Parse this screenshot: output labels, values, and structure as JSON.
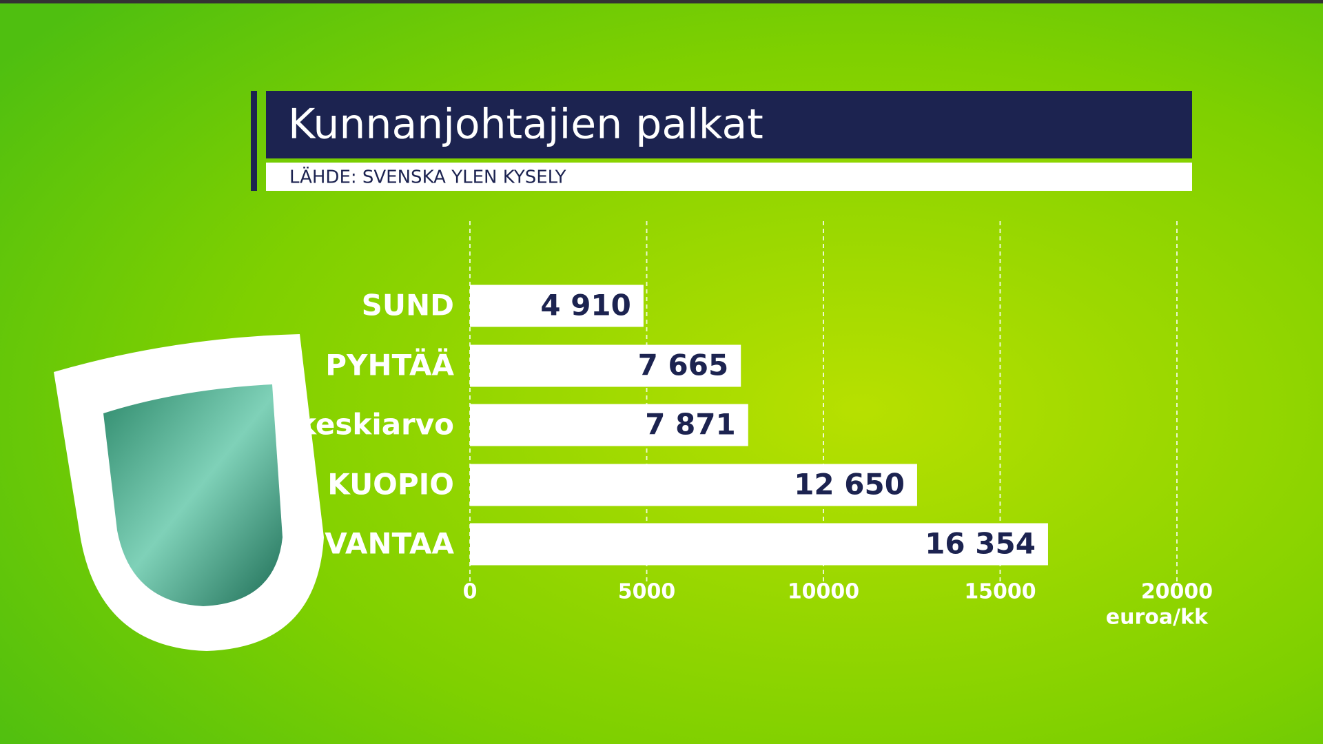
{
  "chart_data": {
    "type": "barh",
    "title": "Kunnanjohtajien palkat",
    "subtitle": "LÄHDE: SVENSKA YLEN KYSELY",
    "categories": [
      "SUND",
      "PYHTÄÄ",
      "keskiarvo",
      "KUOPIO",
      "VANTAA"
    ],
    "values": [
      4910,
      7665,
      7871,
      12650,
      16354
    ],
    "value_labels": [
      "4 910",
      "7 665",
      "7 871",
      "12 650",
      "16 354"
    ],
    "color": "#ffffff",
    "xlim": [
      0,
      20000
    ],
    "xticks": [
      0,
      5000,
      10000,
      15000,
      20000
    ],
    "xlabel": "euroa/kk",
    "grid": true
  }
}
